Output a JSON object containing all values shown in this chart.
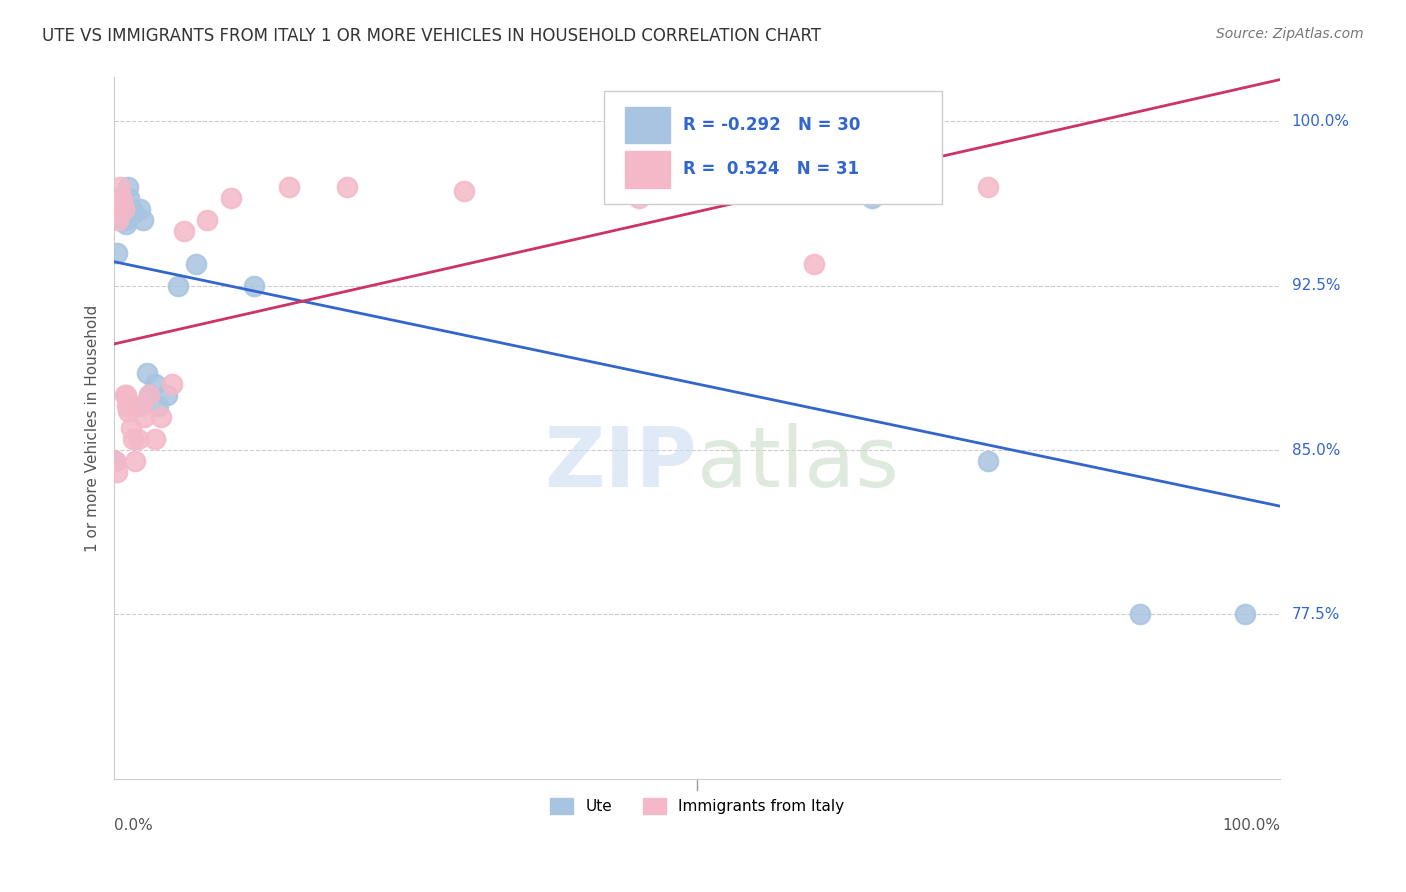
{
  "title": "UTE VS IMMIGRANTS FROM ITALY 1 OR MORE VEHICLES IN HOUSEHOLD CORRELATION CHART",
  "source": "Source: ZipAtlas.com",
  "ylabel": "1 or more Vehicles in Household",
  "ytick_labels": [
    "100.0%",
    "92.5%",
    "85.0%",
    "77.5%"
  ],
  "ytick_values": [
    1.0,
    0.925,
    0.85,
    0.775
  ],
  "legend_label1": "Ute",
  "legend_label2": "Immigrants from Italy",
  "R_blue": -0.292,
  "N_blue": 30,
  "R_pink": 0.524,
  "N_pink": 31,
  "blue_color": "#a8c4e0",
  "pink_color": "#f4b8c8",
  "blue_line_color": "#3366cc",
  "pink_line_color": "#cc3366",
  "blue_points_x": [
    0.001,
    0.002,
    0.003,
    0.004,
    0.005,
    0.006,
    0.007,
    0.008,
    0.009,
    0.01,
    0.012,
    0.013,
    0.015,
    0.017,
    0.019,
    0.022,
    0.025,
    0.028,
    0.03,
    0.035,
    0.038,
    0.045,
    0.055,
    0.07,
    0.12,
    0.55,
    0.65,
    0.75,
    0.88,
    0.97
  ],
  "blue_points_y": [
    0.845,
    0.94,
    0.955,
    0.965,
    0.96,
    0.955,
    0.963,
    0.958,
    0.955,
    0.953,
    0.97,
    0.965,
    0.96,
    0.958,
    0.87,
    0.96,
    0.955,
    0.885,
    0.875,
    0.88,
    0.87,
    0.875,
    0.925,
    0.935,
    0.925,
    0.97,
    0.965,
    0.845,
    0.775,
    0.775
  ],
  "pink_points_x": [
    0.001,
    0.002,
    0.003,
    0.004,
    0.005,
    0.006,
    0.007,
    0.008,
    0.009,
    0.01,
    0.011,
    0.012,
    0.014,
    0.016,
    0.018,
    0.02,
    0.023,
    0.026,
    0.03,
    0.035,
    0.04,
    0.05,
    0.06,
    0.08,
    0.1,
    0.15,
    0.2,
    0.3,
    0.45,
    0.6,
    0.75
  ],
  "pink_points_y": [
    0.845,
    0.84,
    0.955,
    0.958,
    0.97,
    0.965,
    0.963,
    0.96,
    0.875,
    0.875,
    0.87,
    0.868,
    0.86,
    0.855,
    0.845,
    0.855,
    0.87,
    0.865,
    0.875,
    0.855,
    0.865,
    0.88,
    0.95,
    0.955,
    0.965,
    0.97,
    0.97,
    0.968,
    0.965,
    0.935,
    0.97
  ],
  "xmin": 0.0,
  "xmax": 1.0,
  "ymin": 0.7,
  "ymax": 1.02,
  "figsize": [
    14.06,
    8.92
  ],
  "dpi": 100
}
